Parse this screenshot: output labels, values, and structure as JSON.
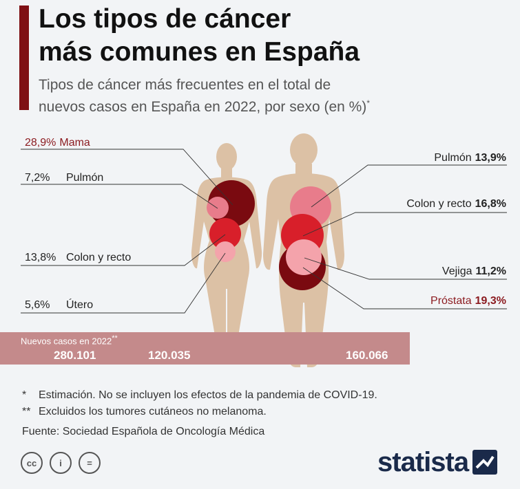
{
  "title_line1": "Los tipos de cáncer",
  "title_line2": "más comunes en España",
  "subtitle_line1": "Tipos de cáncer más frecuentes en el total de",
  "subtitle_line2": "nuevos casos en España en 2022, por sexo (en %)",
  "subtitle_mark": "*",
  "chart_data": {
    "type": "bubble",
    "unit": "%",
    "series": [
      {
        "name": "Mujeres",
        "items": [
          {
            "category": "Mama",
            "pct_text": "28,9%",
            "value": 28.9,
            "color": "#7a0a10"
          },
          {
            "category": "Pulmón",
            "pct_text": "7,2%",
            "value": 7.2,
            "color": "#e87c8b"
          },
          {
            "category": "Colon y recto",
            "pct_text": "13,8%",
            "value": 13.8,
            "color": "#d81f2a"
          },
          {
            "category": "Útero",
            "pct_text": "5,6%",
            "value": 5.6,
            "color": "#f4a3ab"
          }
        ]
      },
      {
        "name": "Hombres",
        "items": [
          {
            "category": "Pulmón",
            "pct_text": "13,9%",
            "value": 13.9,
            "color": "#e87c8b"
          },
          {
            "category": "Colon y recto",
            "pct_text": "16,8%",
            "value": 16.8,
            "color": "#d81f2a"
          },
          {
            "category": "Vejiga",
            "pct_text": "11,2%",
            "value": 11.2,
            "color": "#f4a3ab"
          },
          {
            "category": "Próstata",
            "pct_text": "19,3%",
            "value": 19.3,
            "color": "#7a0a10"
          }
        ]
      }
    ],
    "nuevos_casos": {
      "label": "Nuevos casos en 2022",
      "mark": "**",
      "total": "280.101",
      "mujeres": "120.035",
      "hombres": "160.066"
    }
  },
  "notes": {
    "note1_mark": "*",
    "note1": "Estimación. No se incluyen los efectos de la pandemia de COVID-19.",
    "note2_mark": "**",
    "note2": "Excluidos los tumores cutáneos no melanoma.",
    "source": "Fuente: Sociedad Española de Oncología Médica"
  },
  "footer": {
    "cc_labels": [
      "cc",
      "i",
      "="
    ],
    "brand": "statista"
  },
  "colors": {
    "accent": "#7f1014",
    "body": "#dcc1a5",
    "band": "#c48a8b"
  }
}
